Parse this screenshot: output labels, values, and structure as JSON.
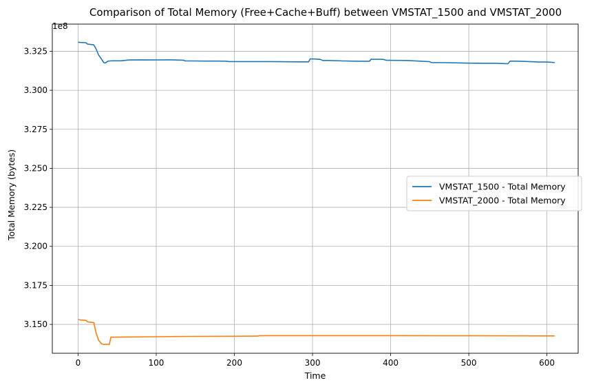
{
  "chart_data": {
    "type": "line",
    "title": "Comparison of Total Memory (Free+Cache+Buff) between VMSTAT_1500 and VMSTAT_2000",
    "xlabel": "Time",
    "ylabel": "Total Memory (bytes)",
    "y_offset_label": "1e8",
    "xlim": [
      -33,
      640
    ],
    "ylim": [
      3.1315,
      3.3424
    ],
    "x_ticks": [
      0,
      100,
      200,
      300,
      400,
      500,
      600
    ],
    "x_tick_labels": [
      "0",
      "100",
      "200",
      "300",
      "400",
      "500",
      "600"
    ],
    "y_ticks": [
      3.15,
      3.175,
      3.2,
      3.225,
      3.25,
      3.275,
      3.3,
      3.325
    ],
    "y_tick_labels": [
      "3.150",
      "3.175",
      "3.200",
      "3.225",
      "3.250",
      "3.275",
      "3.300",
      "3.325"
    ],
    "grid": true,
    "legend_position": "center-right",
    "series": [
      {
        "name": "VMSTAT_1500 - Total Memory",
        "color": "#1f77b4",
        "x": [
          0,
          3,
          10,
          12,
          17,
          20,
          23,
          26,
          30,
          33,
          35,
          38,
          40,
          45,
          55,
          65,
          80,
          95,
          110,
          120,
          135,
          137,
          150,
          160,
          180,
          190,
          193,
          220,
          240,
          260,
          280,
          295,
          297,
          305,
          310,
          313,
          320,
          340,
          360,
          373,
          375,
          390,
          395,
          420,
          440,
          450,
          452,
          470,
          490,
          500,
          520,
          535,
          550,
          553,
          565,
          580,
          590,
          600,
          610
        ],
        "y": [
          3.3308,
          3.3306,
          3.3305,
          3.3296,
          3.3293,
          3.3291,
          3.3265,
          3.3228,
          3.32,
          3.3177,
          3.3175,
          3.3186,
          3.3188,
          3.3189,
          3.3189,
          3.3194,
          3.3195,
          3.3194,
          3.3195,
          3.3195,
          3.3193,
          3.3188,
          3.3188,
          3.3187,
          3.3187,
          3.3186,
          3.3184,
          3.3184,
          3.3184,
          3.3183,
          3.3182,
          3.3182,
          3.3201,
          3.32,
          3.3198,
          3.3191,
          3.3191,
          3.3188,
          3.3186,
          3.3186,
          3.3199,
          3.3198,
          3.3192,
          3.3191,
          3.3186,
          3.3183,
          3.3178,
          3.3177,
          3.3175,
          3.3174,
          3.3173,
          3.3173,
          3.317,
          3.3187,
          3.3186,
          3.3183,
          3.3181,
          3.3181,
          3.3178
        ]
      },
      {
        "name": "VMSTAT_2000 - Total Memory",
        "color": "#ff7f0e",
        "x": [
          0,
          3,
          10,
          12,
          17,
          20,
          23,
          26,
          30,
          33,
          35,
          38,
          40,
          42,
          60,
          100,
          140,
          200,
          230,
          232,
          300,
          400,
          500,
          600,
          610
        ],
        "y": [
          3.1531,
          3.1528,
          3.1526,
          3.1516,
          3.1513,
          3.1512,
          3.1445,
          3.14,
          3.1375,
          3.1371,
          3.1372,
          3.1372,
          3.1372,
          3.1418,
          3.1419,
          3.1421,
          3.1423,
          3.1424,
          3.1425,
          3.1428,
          3.1428,
          3.1428,
          3.1427,
          3.1426,
          3.1426
        ]
      }
    ]
  }
}
